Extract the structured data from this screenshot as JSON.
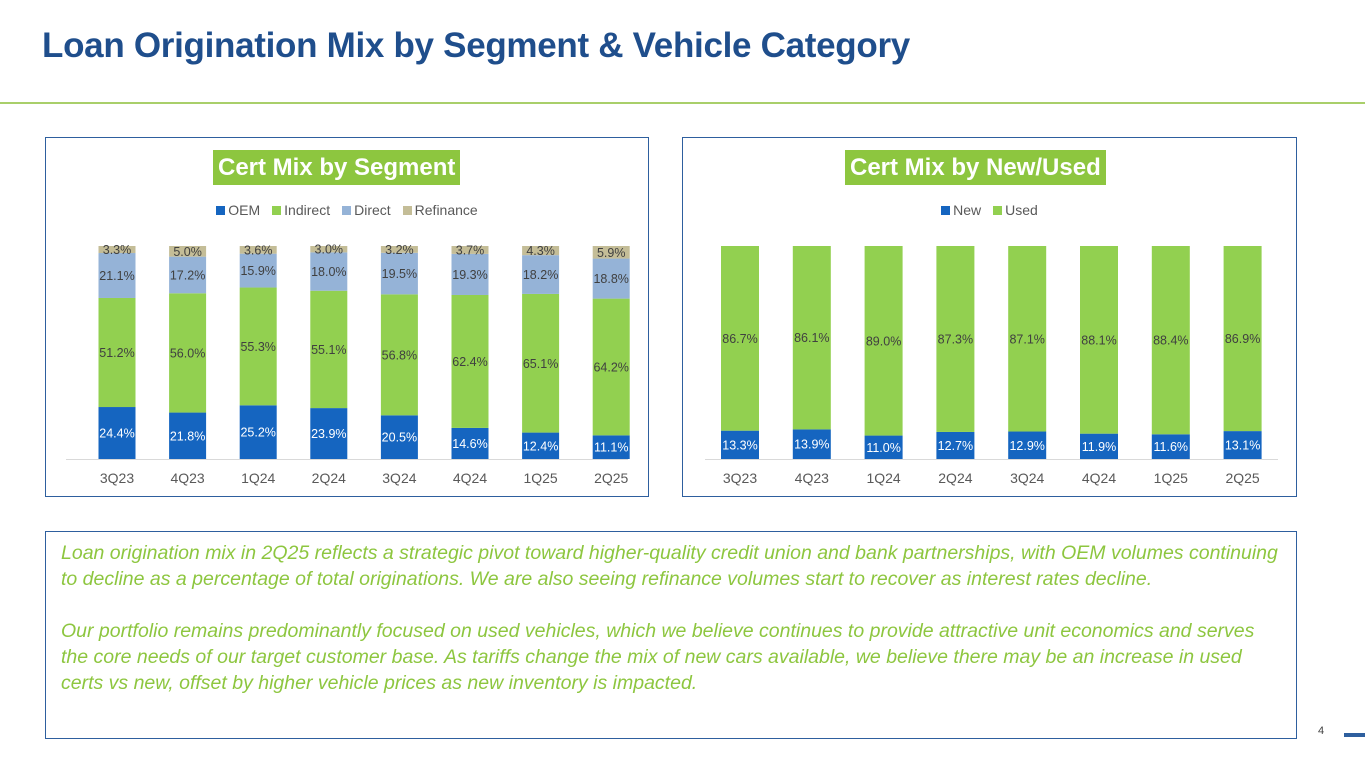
{
  "page": {
    "title": "Loan Origination Mix by Segment & Vehicle Category",
    "page_number": "4",
    "colors": {
      "title": "#1f4e8c",
      "accent_green": "#8dc63f",
      "border_blue": "#2e5f9e"
    }
  },
  "commentary": {
    "paragraphs": [
      "Loan origination mix in 2Q25 reflects a strategic pivot toward higher-quality credit union and bank partnerships, with OEM volumes continuing to decline as a percentage of total originations. We are also seeing refinance volumes start to recover as interest rates decline.",
      "Our portfolio remains predominantly focused on used vehicles, which we believe continues to provide attractive unit economics and serves the core needs of our target customer base. As tariffs change the mix of new cars available, we believe there may be an increase in used certs vs new, offset by higher vehicle prices as new inventory is impacted."
    ]
  },
  "chart_data": [
    {
      "type": "bar",
      "stacked": true,
      "percent_stacked": true,
      "title": "Cert Mix by Segment",
      "xlabel": "",
      "ylabel": "",
      "ylim": [
        0,
        100
      ],
      "grid": false,
      "legend_position": "top",
      "categories": [
        "3Q23",
        "4Q23",
        "1Q24",
        "2Q24",
        "3Q24",
        "4Q24",
        "1Q25",
        "2Q25"
      ],
      "series": [
        {
          "name": "OEM",
          "color": "#1565c0",
          "label_color": "#ffffff",
          "values": [
            24.4,
            21.8,
            25.2,
            23.9,
            20.5,
            14.6,
            12.4,
            11.1
          ]
        },
        {
          "name": "Indirect",
          "color": "#92d050",
          "label_color": "#404040",
          "values": [
            51.2,
            56.0,
            55.3,
            55.1,
            56.8,
            62.4,
            65.1,
            64.2
          ]
        },
        {
          "name": "Direct",
          "color": "#95b3d7",
          "label_color": "#404040",
          "values": [
            21.1,
            17.2,
            15.9,
            18.0,
            19.5,
            19.3,
            18.2,
            18.8
          ]
        },
        {
          "name": "Refinance",
          "color": "#c4bd97",
          "label_color": "#404040",
          "values": [
            3.3,
            5.0,
            3.6,
            3.0,
            3.2,
            3.7,
            4.3,
            5.9
          ]
        }
      ]
    },
    {
      "type": "bar",
      "stacked": true,
      "percent_stacked": true,
      "title": "Cert Mix by New/Used",
      "xlabel": "",
      "ylabel": "",
      "ylim": [
        0,
        100
      ],
      "grid": false,
      "legend_position": "top",
      "categories": [
        "3Q23",
        "4Q23",
        "1Q24",
        "2Q24",
        "3Q24",
        "4Q24",
        "1Q25",
        "2Q25"
      ],
      "series": [
        {
          "name": "New",
          "color": "#1565c0",
          "label_color": "#ffffff",
          "values": [
            13.3,
            13.9,
            11.0,
            12.7,
            12.9,
            11.9,
            11.6,
            13.1
          ]
        },
        {
          "name": "Used",
          "color": "#92d050",
          "label_color": "#404040",
          "values": [
            86.7,
            86.1,
            89.0,
            87.3,
            87.1,
            88.1,
            88.4,
            86.9
          ]
        }
      ]
    }
  ]
}
